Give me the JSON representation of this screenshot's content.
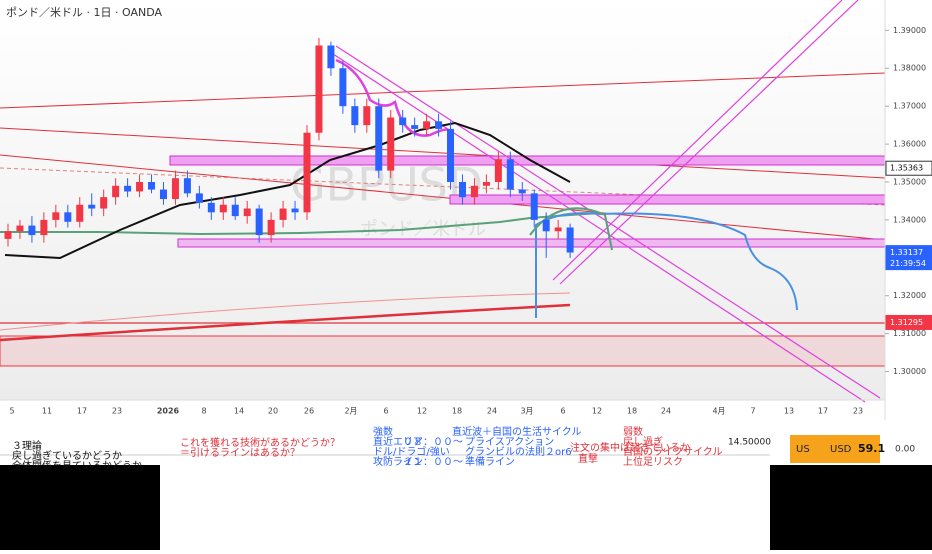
{
  "chart_data": {
    "type": "candlestick",
    "title": "ポンド／米ドル · 1日 · OANDA",
    "watermark": "GBPUSD",
    "watermark_sub": "ポンド／米ドル",
    "up_color": "#f23645",
    "down_color": "#2962ff",
    "open": [
      1.335,
      1.337,
      1.3385,
      1.336,
      1.34,
      1.342,
      1.3395,
      1.344,
      1.343,
      1.346,
      1.349,
      1.3475,
      1.35,
      1.348,
      1.3455,
      1.351,
      1.347,
      1.3445,
      1.342,
      1.344,
      1.341,
      1.343,
      1.336,
      1.34,
      1.343,
      1.342,
      1.363,
      1.386,
      1.38,
      1.37,
      1.365,
      1.37,
      1.353,
      1.367,
      1.365,
      1.364,
      1.366,
      1.364,
      1.35,
      1.346,
      1.349,
      1.35,
      1.356,
      1.348,
      1.347,
      1.34,
      1.337,
      1.338
    ],
    "high": [
      1.339,
      1.34,
      1.341,
      1.342,
      1.344,
      1.344,
      1.346,
      1.347,
      1.348,
      1.351,
      1.351,
      1.352,
      1.352,
      1.35,
      1.353,
      1.353,
      1.349,
      1.346,
      1.346,
      1.346,
      1.345,
      1.344,
      1.342,
      1.345,
      1.345,
      1.365,
      1.388,
      1.387,
      1.382,
      1.372,
      1.372,
      1.372,
      1.369,
      1.369,
      1.367,
      1.368,
      1.368,
      1.366,
      1.352,
      1.351,
      1.352,
      1.358,
      1.358,
      1.35,
      1.348,
      1.342,
      1.34,
      1.339
    ],
    "low": [
      1.333,
      1.335,
      1.334,
      1.334,
      1.338,
      1.338,
      1.338,
      1.341,
      1.341,
      1.344,
      1.346,
      1.346,
      1.347,
      1.344,
      1.344,
      1.346,
      1.343,
      1.34,
      1.34,
      1.34,
      1.339,
      1.334,
      1.334,
      1.338,
      1.34,
      1.34,
      1.361,
      1.378,
      1.368,
      1.363,
      1.363,
      1.351,
      1.351,
      1.363,
      1.362,
      1.362,
      1.362,
      1.348,
      1.344,
      1.344,
      1.347,
      1.348,
      1.346,
      1.345,
      1.338,
      1.33,
      1.335,
      1.33
    ],
    "close": [
      1.337,
      1.3385,
      1.336,
      1.34,
      1.342,
      1.3395,
      1.344,
      1.343,
      1.346,
      1.349,
      1.3475,
      1.35,
      1.348,
      1.3455,
      1.351,
      1.347,
      1.3445,
      1.342,
      1.344,
      1.341,
      1.343,
      1.336,
      1.34,
      1.343,
      1.342,
      1.363,
      1.386,
      1.38,
      1.37,
      1.365,
      1.37,
      1.353,
      1.367,
      1.365,
      1.364,
      1.366,
      1.364,
      1.35,
      1.346,
      1.349,
      1.35,
      1.356,
      1.348,
      1.347,
      1.34,
      1.337,
      1.338,
      1.3314
    ],
    "ylim": [
      1.2925,
      1.398
    ],
    "yticks": [
      {
        "value": 1.39,
        "label": "1.39000"
      },
      {
        "value": 1.38,
        "label": "1.38000"
      },
      {
        "value": 1.37,
        "label": "1.37000"
      },
      {
        "value": 1.36,
        "label": "1.36000"
      },
      {
        "value": 1.35,
        "label": "1.35000"
      },
      {
        "value": 1.34,
        "label": "1.34000"
      },
      {
        "value": 1.32,
        "label": "1.32000"
      },
      {
        "value": 1.31,
        "label": "1.31000"
      },
      {
        "value": 1.3,
        "label": "1.30000"
      }
    ],
    "price_labels": [
      {
        "value": 1.35363,
        "label": "1.35363"
      },
      {
        "value": 1.33137,
        "label": "1.33137"
      },
      {
        "value": 1.31295,
        "label": "1.31295"
      }
    ],
    "countdown": "21:39:54",
    "xtick_labels": [
      "5",
      "11",
      "17",
      "23",
      "2026",
      "8",
      "14",
      "20",
      "26",
      "2月",
      "6",
      "12",
      "18",
      "24",
      "3月",
      "6",
      "12",
      "18",
      "24",
      "4月",
      "7",
      "13",
      "17",
      "23"
    ],
    "annotations": [
      "３理論",
      "戻し過ぎているかどうか",
      "全体関係を見ているかどうか",
      "これを獲れる技術があるかどうか？",
      "＝引けるラインはあるか？",
      "強数",
      "直近エリア",
      "ドル/ドラゴ/強い",
      "攻防ライン",
      "０８：００〜",
      "２１：００〜",
      "直近波＋自国の生活サイクル",
      "プライスアクション",
      "グランビルの法則２or6",
      "準備ライン",
      "注文の集中は起きているか",
      "直撃",
      "弱数",
      "戻し過ぎ",
      "自国のライフサイクル",
      "上位足リスク"
    ],
    "widget": {
      "value": "14.50000",
      "flag": "US",
      "currency": "USD",
      "number": "59.1",
      "change": "0.00"
    }
  }
}
